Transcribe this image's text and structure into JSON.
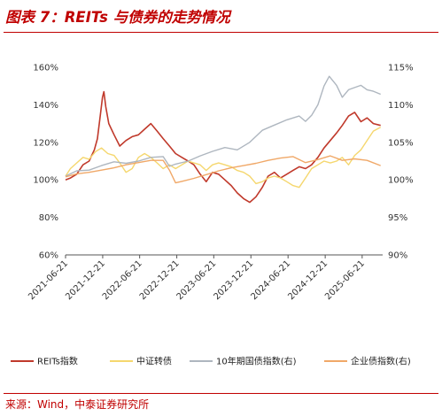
{
  "figure": {
    "title": "图表 7：REITs 与债券的走势情况",
    "source": "来源：Wind，中泰证券研究所"
  },
  "chart_data": {
    "type": "line",
    "left_axis": {
      "ticks": [
        "60%",
        "80%",
        "100%",
        "120%",
        "140%",
        "160%"
      ],
      "range": [
        60,
        160
      ]
    },
    "right_axis": {
      "ticks": [
        "90%",
        "95%",
        "100%",
        "105%",
        "110%",
        "115%"
      ],
      "range": [
        90,
        115
      ]
    },
    "x_axis": {
      "ticks": [
        "2021-06-21",
        "2021-12-21",
        "2022-06-21",
        "2022-12-21",
        "2023-06-21",
        "2023-12-21",
        "2024-06-21",
        "2024-12-21",
        "2025-06-21"
      ]
    },
    "x_range": [
      "2021-06-21",
      "2025-09-30"
    ],
    "legend_position": "bottom",
    "grid": false,
    "series": [
      {
        "name": "REITs指数",
        "axis": "left",
        "color": "#c0392b",
        "points": [
          [
            "2021-06-21",
            100
          ],
          [
            "2021-07-15",
            101
          ],
          [
            "2021-08-15",
            103
          ],
          [
            "2021-09-15",
            108
          ],
          [
            "2021-10-15",
            110
          ],
          [
            "2021-11-10",
            116
          ],
          [
            "2021-11-25",
            122
          ],
          [
            "2021-12-10",
            135
          ],
          [
            "2021-12-20",
            144
          ],
          [
            "2021-12-27",
            147
          ],
          [
            "2022-01-05",
            139
          ],
          [
            "2022-01-20",
            130
          ],
          [
            "2022-02-15",
            124
          ],
          [
            "2022-03-15",
            118
          ],
          [
            "2022-04-15",
            121
          ],
          [
            "2022-05-15",
            123
          ],
          [
            "2022-06-15",
            124
          ],
          [
            "2022-07-15",
            127
          ],
          [
            "2022-08-15",
            130
          ],
          [
            "2022-09-15",
            126
          ],
          [
            "2022-10-15",
            122
          ],
          [
            "2022-11-15",
            118
          ],
          [
            "2022-12-15",
            114
          ],
          [
            "2023-01-15",
            112
          ],
          [
            "2023-02-15",
            110
          ],
          [
            "2023-03-15",
            108
          ],
          [
            "2023-04-15",
            103
          ],
          [
            "2023-05-15",
            99
          ],
          [
            "2023-06-15",
            104
          ],
          [
            "2023-07-15",
            103
          ],
          [
            "2023-08-15",
            100
          ],
          [
            "2023-09-15",
            97
          ],
          [
            "2023-10-15",
            93
          ],
          [
            "2023-11-15",
            90
          ],
          [
            "2023-12-15",
            88
          ],
          [
            "2024-01-15",
            91
          ],
          [
            "2024-02-15",
            96
          ],
          [
            "2024-03-15",
            102
          ],
          [
            "2024-04-15",
            104
          ],
          [
            "2024-05-15",
            101
          ],
          [
            "2024-06-15",
            103
          ],
          [
            "2024-07-15",
            105
          ],
          [
            "2024-08-15",
            107
          ],
          [
            "2024-09-15",
            106
          ],
          [
            "2024-10-15",
            108
          ],
          [
            "2024-11-15",
            112
          ],
          [
            "2024-12-15",
            117
          ],
          [
            "2025-01-15",
            121
          ],
          [
            "2025-02-15",
            125
          ],
          [
            "2025-03-15",
            129
          ],
          [
            "2025-04-15",
            134
          ],
          [
            "2025-05-15",
            136
          ],
          [
            "2025-06-15",
            131
          ],
          [
            "2025-07-15",
            133
          ],
          [
            "2025-08-15",
            130
          ],
          [
            "2025-09-20",
            129
          ]
        ]
      },
      {
        "name": "中证转债",
        "axis": "left",
        "color": "#f5d76e",
        "points": [
          [
            "2021-06-21",
            102
          ],
          [
            "2021-07-15",
            106
          ],
          [
            "2021-08-15",
            109
          ],
          [
            "2021-09-15",
            112
          ],
          [
            "2021-10-15",
            111
          ],
          [
            "2021-11-15",
            115
          ],
          [
            "2021-12-15",
            117
          ],
          [
            "2022-01-15",
            114
          ],
          [
            "2022-02-15",
            113
          ],
          [
            "2022-03-15",
            109
          ],
          [
            "2022-04-15",
            104
          ],
          [
            "2022-05-15",
            106
          ],
          [
            "2022-06-15",
            112
          ],
          [
            "2022-07-15",
            114
          ],
          [
            "2022-08-15",
            112
          ],
          [
            "2022-09-15",
            109
          ],
          [
            "2022-10-15",
            106
          ],
          [
            "2022-11-15",
            108
          ],
          [
            "2022-12-15",
            106
          ],
          [
            "2023-01-15",
            108
          ],
          [
            "2023-02-15",
            110
          ],
          [
            "2023-03-15",
            109
          ],
          [
            "2023-04-15",
            108
          ],
          [
            "2023-05-15",
            105
          ],
          [
            "2023-06-15",
            108
          ],
          [
            "2023-07-15",
            109
          ],
          [
            "2023-08-15",
            108
          ],
          [
            "2023-09-15",
            107
          ],
          [
            "2023-10-15",
            105
          ],
          [
            "2023-11-15",
            104
          ],
          [
            "2023-12-15",
            102
          ],
          [
            "2024-01-15",
            98
          ],
          [
            "2024-02-15",
            99
          ],
          [
            "2024-03-15",
            101
          ],
          [
            "2024-04-15",
            102
          ],
          [
            "2024-05-15",
            101
          ],
          [
            "2024-06-15",
            99
          ],
          [
            "2024-07-15",
            97
          ],
          [
            "2024-08-15",
            96
          ],
          [
            "2024-09-15",
            101
          ],
          [
            "2024-10-15",
            106
          ],
          [
            "2024-11-15",
            108
          ],
          [
            "2024-12-15",
            110
          ],
          [
            "2025-01-15",
            109
          ],
          [
            "2025-02-15",
            110
          ],
          [
            "2025-03-15",
            112
          ],
          [
            "2025-04-15",
            108
          ],
          [
            "2025-05-15",
            113
          ],
          [
            "2025-06-15",
            116
          ],
          [
            "2025-07-15",
            121
          ],
          [
            "2025-08-15",
            126
          ],
          [
            "2025-09-20",
            128
          ]
        ]
      },
      {
        "name": "10年期国债指数(右)",
        "axis": "right",
        "color": "#aeb6bf",
        "points": [
          [
            "2021-06-21",
            100.5
          ],
          [
            "2021-08-15",
            101.2
          ],
          [
            "2021-10-15",
            101.3
          ],
          [
            "2021-12-15",
            101.9
          ],
          [
            "2022-02-15",
            102.4
          ],
          [
            "2022-04-15",
            102.2
          ],
          [
            "2022-06-15",
            102.5
          ],
          [
            "2022-08-15",
            103.0
          ],
          [
            "2022-10-15",
            103.1
          ],
          [
            "2022-11-15",
            101.8
          ],
          [
            "2022-12-15",
            102.1
          ],
          [
            "2023-02-15",
            102.5
          ],
          [
            "2023-04-15",
            103.2
          ],
          [
            "2023-06-15",
            103.8
          ],
          [
            "2023-08-15",
            104.3
          ],
          [
            "2023-10-15",
            104.0
          ],
          [
            "2023-12-15",
            105.0
          ],
          [
            "2024-02-15",
            106.6
          ],
          [
            "2024-04-15",
            107.3
          ],
          [
            "2024-06-15",
            108.0
          ],
          [
            "2024-08-15",
            108.5
          ],
          [
            "2024-09-15",
            107.8
          ],
          [
            "2024-10-15",
            108.6
          ],
          [
            "2024-11-15",
            110.0
          ],
          [
            "2024-12-15",
            112.5
          ],
          [
            "2025-01-10",
            113.8
          ],
          [
            "2025-02-15",
            112.6
          ],
          [
            "2025-03-15",
            111.0
          ],
          [
            "2025-04-15",
            112.0
          ],
          [
            "2025-05-15",
            112.3
          ],
          [
            "2025-06-15",
            112.6
          ],
          [
            "2025-07-15",
            112.0
          ],
          [
            "2025-08-15",
            111.8
          ],
          [
            "2025-09-20",
            111.4
          ]
        ]
      },
      {
        "name": "企业债指数(右)",
        "axis": "right",
        "color": "#f0a868",
        "points": [
          [
            "2021-06-21",
            100.4
          ],
          [
            "2021-08-15",
            100.8
          ],
          [
            "2021-10-15",
            101.0
          ],
          [
            "2021-12-15",
            101.3
          ],
          [
            "2022-02-15",
            101.6
          ],
          [
            "2022-04-15",
            102.0
          ],
          [
            "2022-06-15",
            102.3
          ],
          [
            "2022-08-15",
            102.6
          ],
          [
            "2022-10-15",
            102.6
          ],
          [
            "2022-11-15",
            101.3
          ],
          [
            "2022-12-15",
            99.6
          ],
          [
            "2023-01-15",
            99.8
          ],
          [
            "2023-03-15",
            100.2
          ],
          [
            "2023-05-15",
            100.7
          ],
          [
            "2023-07-15",
            101.2
          ],
          [
            "2023-09-15",
            101.6
          ],
          [
            "2023-11-15",
            101.9
          ],
          [
            "2024-01-15",
            102.2
          ],
          [
            "2024-03-15",
            102.6
          ],
          [
            "2024-05-15",
            102.9
          ],
          [
            "2024-07-15",
            103.1
          ],
          [
            "2024-09-15",
            102.3
          ],
          [
            "2024-11-15",
            102.7
          ],
          [
            "2025-01-15",
            103.2
          ],
          [
            "2025-03-15",
            102.6
          ],
          [
            "2025-05-15",
            102.8
          ],
          [
            "2025-07-15",
            102.6
          ],
          [
            "2025-09-20",
            101.9
          ]
        ]
      }
    ]
  }
}
